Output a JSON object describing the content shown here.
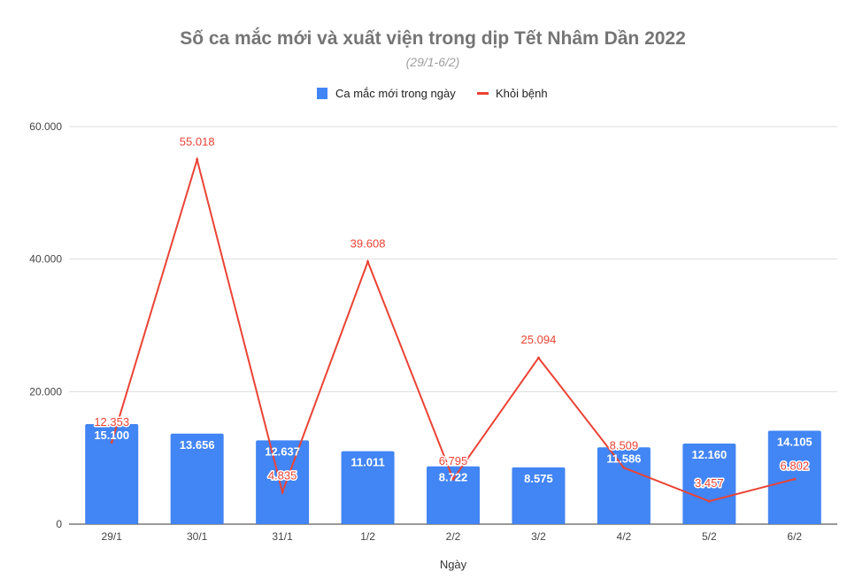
{
  "chart_data": {
    "type": "bar+line",
    "title": "Số ca mắc mới và xuất viện trong dịp Tết Nhâm Dần 2022",
    "subtitle": "(29/1-6/2)",
    "xlabel": "Ngày",
    "ylabel": "",
    "ylim": [
      0,
      60000
    ],
    "yticks": [
      0,
      20000,
      40000,
      60000
    ],
    "ytick_labels": [
      "0",
      "20.000",
      "40.000",
      "60.000"
    ],
    "grid": true,
    "legend": "top",
    "categories": [
      "29/1",
      "30/1",
      "31/1",
      "1/2",
      "2/2",
      "3/2",
      "4/2",
      "5/2",
      "6/2"
    ],
    "series": [
      {
        "name": "Ca mắc mới trong ngày",
        "type": "bar",
        "color": "#4285f4",
        "values": [
          15100,
          13656,
          12637,
          11011,
          8722,
          8575,
          11586,
          12160,
          14105
        ],
        "labels": [
          "15.100",
          "13.656",
          "12.637",
          "11.011",
          "8.722",
          "8.575",
          "11.586",
          "12.160",
          "14.105"
        ]
      },
      {
        "name": "Khỏi bệnh",
        "type": "line",
        "color": "#ea4335",
        "values": [
          12353,
          55018,
          4835,
          39608,
          6795,
          25094,
          8509,
          3457,
          6802
        ],
        "labels": [
          "12.353",
          "55.018",
          "4.835",
          "39.608",
          "6.795",
          "25.094",
          "8.509",
          "3.457",
          "6.802"
        ]
      }
    ]
  }
}
